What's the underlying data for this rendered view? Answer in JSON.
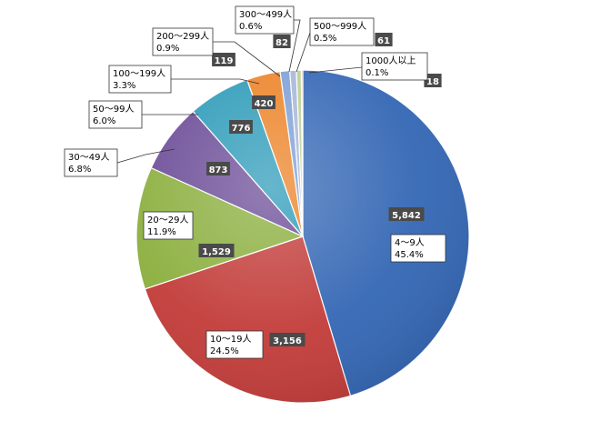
{
  "chart_data": {
    "type": "pie",
    "title": "",
    "legend": "none",
    "slices": [
      {
        "label": "4〜9人",
        "value": 5842,
        "value_text": "5,842",
        "percent_text": "45.4%",
        "color": "#3366b4"
      },
      {
        "label": "10〜19人",
        "value": 3156,
        "value_text": "3,156",
        "percent_text": "24.5%",
        "color": "#c23b38"
      },
      {
        "label": "20〜29人",
        "value": 1529,
        "value_text": "1,529",
        "percent_text": "11.9%",
        "color": "#8aae3c"
      },
      {
        "label": "30〜49人",
        "value": 873,
        "value_text": "873",
        "percent_text": "6.8%",
        "color": "#6a4a96"
      },
      {
        "label": "50〜99人",
        "value": 776,
        "value_text": "776",
        "percent_text": "6.0%",
        "color": "#2b9ab8"
      },
      {
        "label": "100〜199人",
        "value": 420,
        "value_text": "420",
        "percent_text": "3.3%",
        "color": "#ec8226"
      },
      {
        "label": "200〜299人",
        "value": 119,
        "value_text": "119",
        "percent_text": "0.9%",
        "color": "#7d9fd6"
      },
      {
        "label": "300〜499人",
        "value": 82,
        "value_text": "82",
        "percent_text": "0.6%",
        "color": "#a8b5d8"
      },
      {
        "label": "500〜999人",
        "value": 61,
        "value_text": "61",
        "percent_text": "0.5%",
        "color": "#b8d090"
      },
      {
        "label": "1000人以上",
        "value": 18,
        "value_text": "18",
        "percent_text": "0.1%",
        "color": "#d8a0a0"
      }
    ]
  }
}
